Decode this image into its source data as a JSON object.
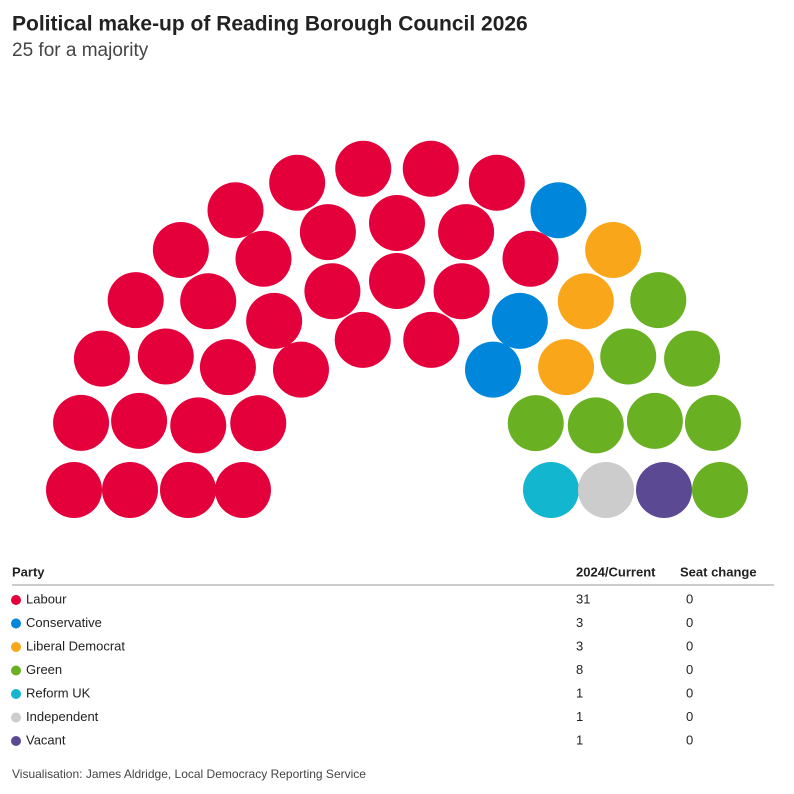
{
  "chart_data": {
    "type": "parliament",
    "title": "Political make-up of Reading Borough Council 2026",
    "subtitle": "25 for a majority",
    "table_header": "Party",
    "categories": [
      "Labour",
      "Conservative",
      "Liberal Democrat",
      "Green",
      "Reform UK",
      "Independent",
      "Vacant"
    ],
    "colors": [
      "#e4003b",
      "#0087dc",
      "#faa61a",
      "#6ab023",
      "#12b6cf",
      "#cccccc",
      "#5b4a93"
    ],
    "series": [
      {
        "name": "2024/Current",
        "values": [
          31,
          3,
          3,
          8,
          1,
          1,
          1
        ]
      },
      {
        "name": "Seat change",
        "values": [
          0,
          0,
          0,
          0,
          0,
          0,
          0
        ]
      }
    ],
    "source": "Visualisation: James Aldridge, Local Democracy Reporting Service"
  }
}
